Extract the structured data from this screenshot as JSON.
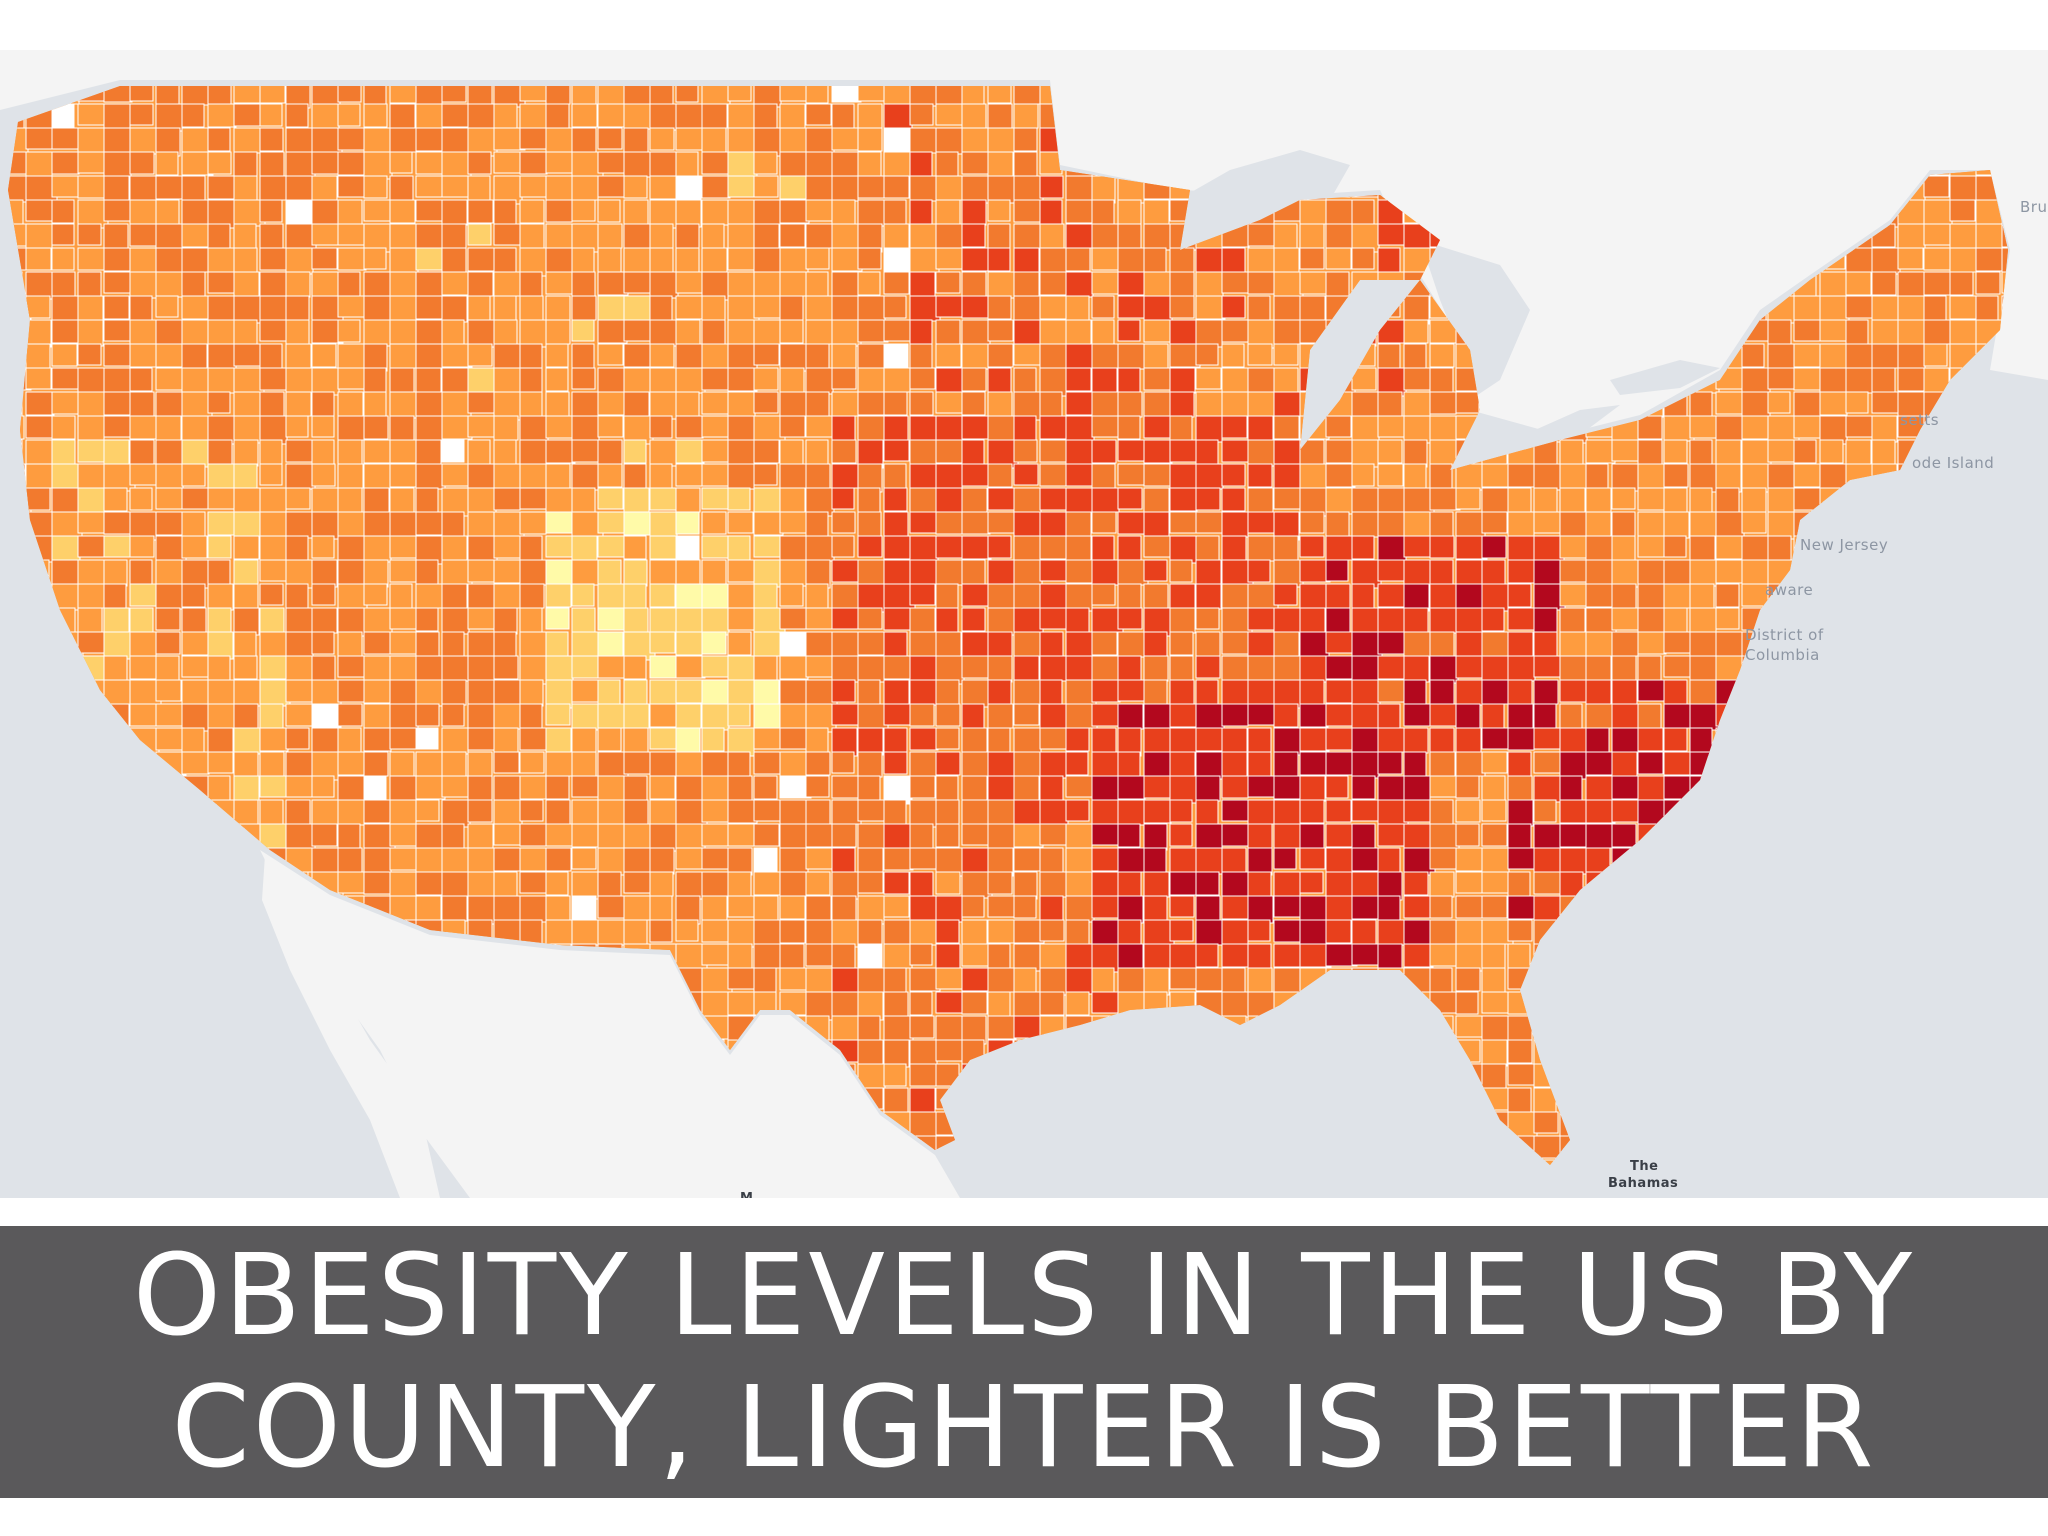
{
  "caption": {
    "line1": "OBESITY LEVELS IN THE US BY",
    "line2": "COUNTY, LIGHTER IS BETTER"
  },
  "map": {
    "place_labels": {
      "new_jersey": "New Jersey",
      "delaware": "aware",
      "dc_line1": "District of",
      "dc_line2": "Columbia",
      "massachusetts": "setts",
      "rhode_island": "ode Island",
      "bahamas_line1": "The",
      "bahamas_line2": "Bahamas",
      "edge_label": "Bru",
      "mexico": "M"
    },
    "colors": {
      "water": "#dfe3e8",
      "land": "#f4f4f4",
      "county_border": "#ffffff",
      "no_data": "#ffffff",
      "level_1_lightest": "#fffaa8",
      "level_2": "#fed06a",
      "level_3": "#fe9c3f",
      "level_4": "#f27a2e",
      "level_5": "#e8401c",
      "level_6_darkest": "#b3081e"
    }
  }
}
